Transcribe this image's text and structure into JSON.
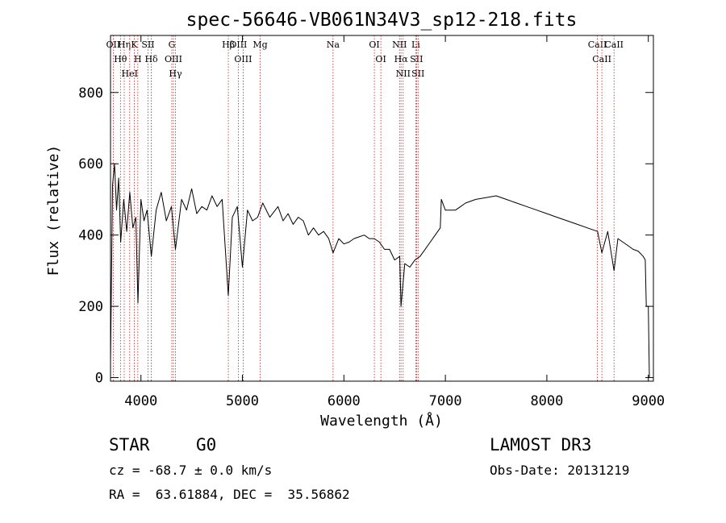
{
  "chart_data": {
    "type": "line",
    "title": "spec-56646-VB061N34V3_sp12-218.fits",
    "xlabel": "Wavelength (Å)",
    "ylabel": "Flux (relative)",
    "xlim": [
      3700,
      9050
    ],
    "ylim": [
      -10,
      960
    ],
    "xticks": [
      4000,
      5000,
      6000,
      7000,
      8000,
      9000
    ],
    "xtick_labels": [
      "4000",
      "5000",
      "6000",
      "7000",
      "8000",
      "9000"
    ],
    "yticks": [
      0,
      200,
      400,
      600,
      800
    ],
    "ytick_labels": [
      "0",
      "200",
      "400",
      "600",
      "800"
    ],
    "grid": false,
    "series": [
      {
        "name": "spectrum",
        "x": [
          3700,
          3720,
          3740,
          3760,
          3780,
          3800,
          3830,
          3860,
          3890,
          3920,
          3950,
          3970,
          4000,
          4030,
          4060,
          4102,
          4150,
          4200,
          4250,
          4300,
          4340,
          4400,
          4450,
          4500,
          4550,
          4600,
          4650,
          4700,
          4750,
          4800,
          4861,
          4900,
          4950,
          5000,
          5050,
          5100,
          5150,
          5200,
          5270,
          5350,
          5400,
          5450,
          5500,
          5550,
          5600,
          5650,
          5700,
          5750,
          5800,
          5850,
          5893,
          5950,
          6000,
          6050,
          6100,
          6150,
          6200,
          6250,
          6300,
          6350,
          6400,
          6450,
          6500,
          6550,
          6563,
          6600,
          6650,
          6700,
          6750,
          6800,
          6850,
          6900,
          6950,
          6960,
          7000,
          7050,
          7100,
          7150,
          7200,
          7300,
          7400,
          7500,
          7600,
          7700,
          7800,
          7900,
          8000,
          8100,
          8200,
          8300,
          8400,
          8500,
          8542,
          8600,
          8662,
          8700,
          8750,
          8800,
          8850,
          8900,
          8950,
          8970,
          8980,
          9000,
          9010
        ],
        "y": [
          40,
          540,
          600,
          470,
          560,
          380,
          500,
          410,
          520,
          420,
          450,
          210,
          500,
          440,
          470,
          340,
          470,
          520,
          440,
          480,
          360,
          500,
          470,
          530,
          460,
          480,
          470,
          510,
          480,
          500,
          230,
          450,
          480,
          310,
          470,
          440,
          450,
          490,
          450,
          480,
          440,
          460,
          430,
          450,
          440,
          400,
          420,
          400,
          410,
          390,
          350,
          390,
          375,
          380,
          390,
          395,
          400,
          390,
          390,
          380,
          360,
          360,
          330,
          340,
          200,
          320,
          310,
          330,
          340,
          360,
          380,
          400,
          420,
          500,
          470,
          470,
          470,
          480,
          490,
          500,
          505,
          510,
          500,
          490,
          480,
          470,
          460,
          450,
          440,
          430,
          420,
          410,
          350,
          410,
          300,
          390,
          380,
          370,
          360,
          355,
          340,
          330,
          200,
          200,
          0
        ]
      }
    ],
    "line_markers": [
      {
        "label": "OII",
        "wavelength": 3727
      },
      {
        "label": "Hθ",
        "wavelength": 3798
      },
      {
        "label": "Hη",
        "wavelength": 3835
      },
      {
        "label": "HeI",
        "wavelength": 3889
      },
      {
        "label": "K",
        "wavelength": 3934
      },
      {
        "label": "H",
        "wavelength": 3969
      },
      {
        "label": "SII",
        "wavelength": 4070
      },
      {
        "label": "Hδ",
        "wavelength": 4102
      },
      {
        "label": "G",
        "wavelength": 4304
      },
      {
        "label": "OIII",
        "wavelength": 4320
      },
      {
        "label": "Hγ",
        "wavelength": 4340
      },
      {
        "label": "Hβ",
        "wavelength": 4861
      },
      {
        "label": "OIII",
        "wavelength": 4959
      },
      {
        "label": "OIII",
        "wavelength": 5007
      },
      {
        "label": "Mg",
        "wavelength": 5175
      },
      {
        "label": "Na",
        "wavelength": 5893
      },
      {
        "label": "OI",
        "wavelength": 6300
      },
      {
        "label": "OI",
        "wavelength": 6364
      },
      {
        "label": "NII",
        "wavelength": 6548
      },
      {
        "label": "Hα",
        "wavelength": 6563
      },
      {
        "label": "NII",
        "wavelength": 6584
      },
      {
        "label": "Li",
        "wavelength": 6708
      },
      {
        "label": "SII",
        "wavelength": 6716
      },
      {
        "label": "SII",
        "wavelength": 6731
      },
      {
        "label": "CaII",
        "wavelength": 8498
      },
      {
        "label": "CaII",
        "wavelength": 8542
      },
      {
        "label": "CaII",
        "wavelength": 8662
      }
    ]
  },
  "info": {
    "object_class": "STAR",
    "subclass": "G0",
    "survey": "LAMOST DR3",
    "cz_line": "cz = -68.7 ± 0.0 km/s",
    "obs_date_line": "Obs-Date: 20131219",
    "coords_line": "RA =  63.61884, DEC =  35.56862"
  }
}
